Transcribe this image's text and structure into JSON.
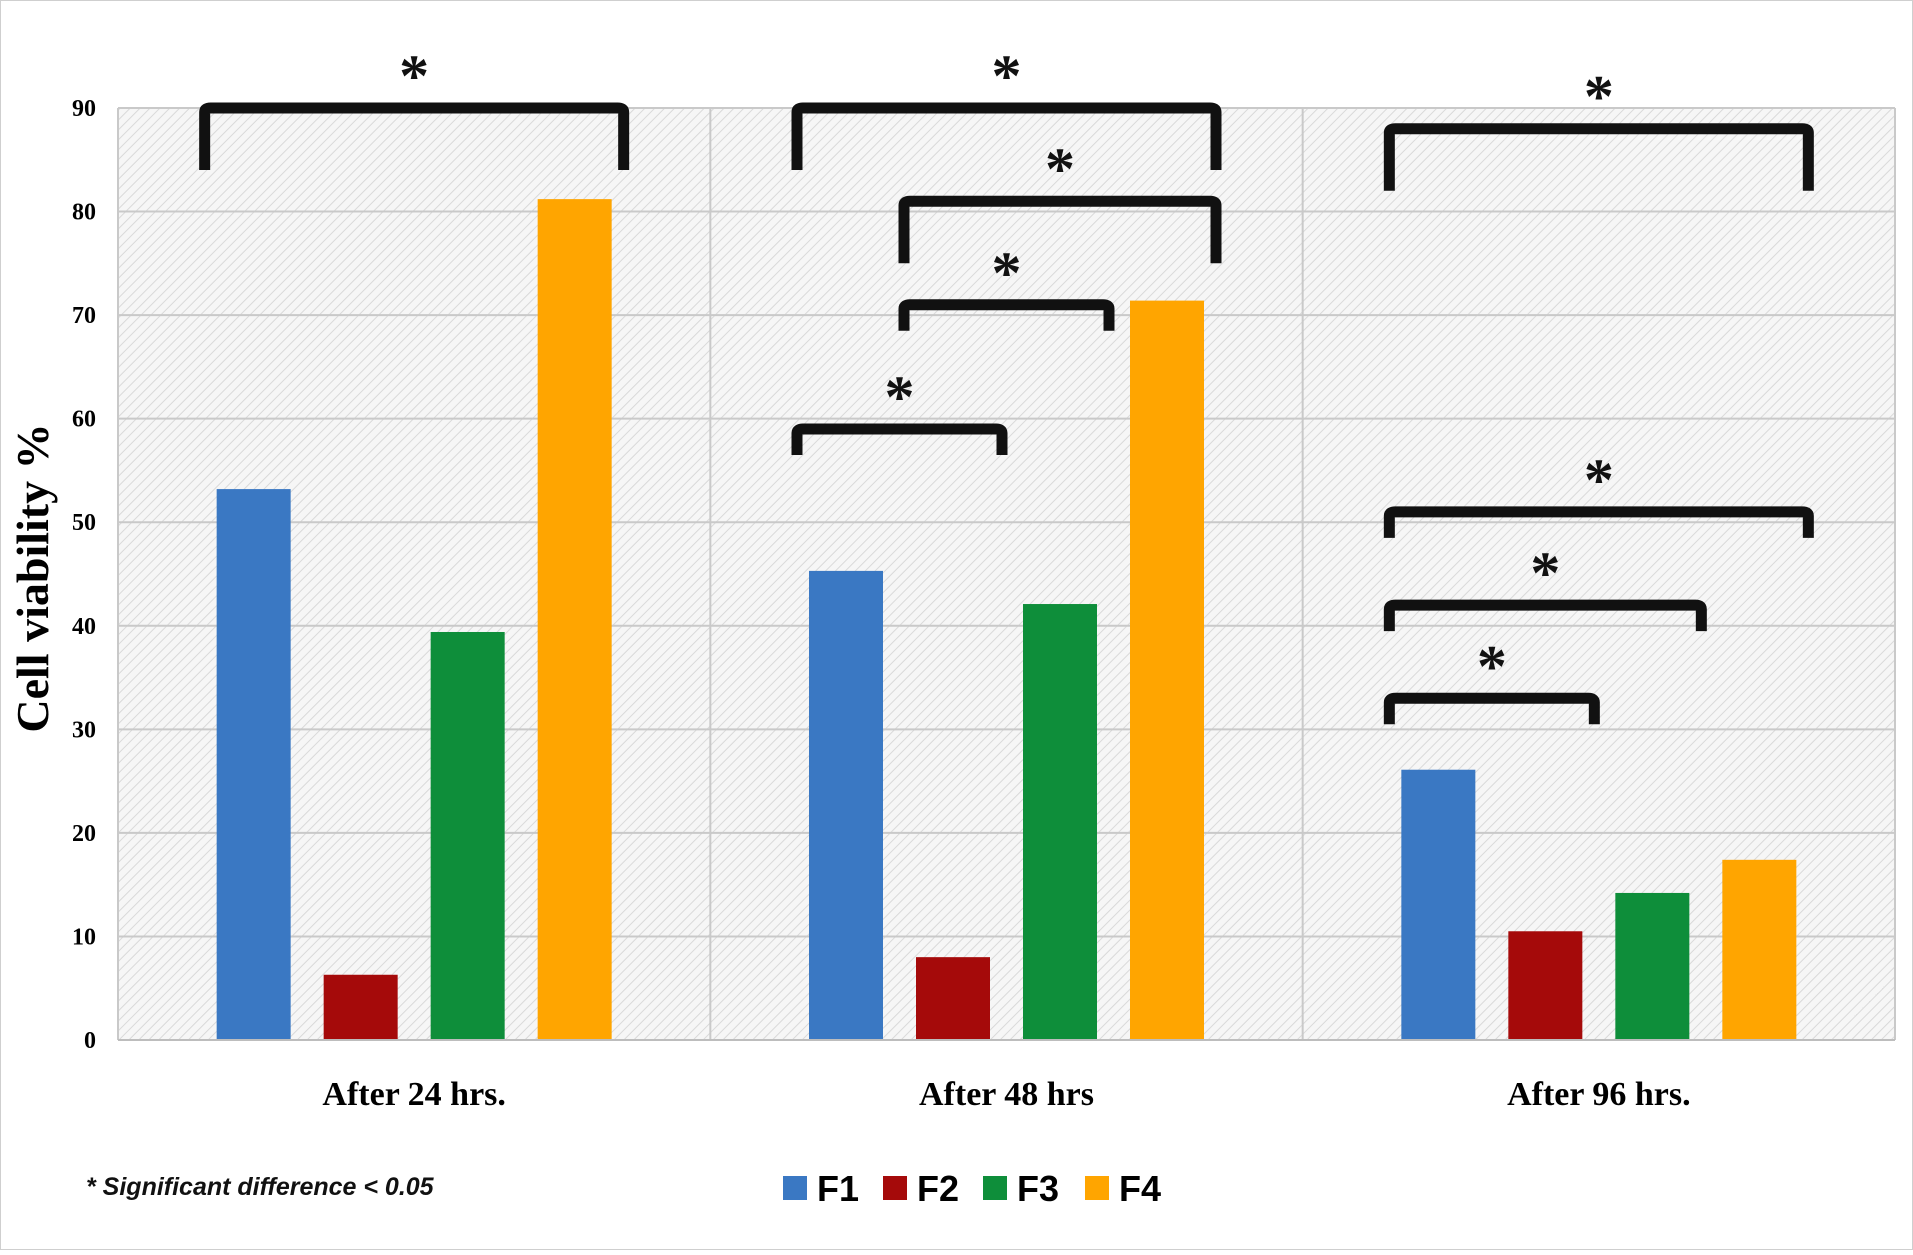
{
  "chart_data": {
    "type": "bar",
    "categories": [
      "After 24 hrs.",
      "After 48 hrs",
      "After 96 hrs."
    ],
    "series": [
      {
        "name": "F1",
        "color": "#3a78c3",
        "values": [
          53.2,
          45.3,
          26.1
        ]
      },
      {
        "name": "F2",
        "color": "#a50a0a",
        "values": [
          6.3,
          8.0,
          10.5
        ]
      },
      {
        "name": "F3",
        "color": "#0e8e3a",
        "values": [
          39.4,
          42.1,
          14.2
        ]
      },
      {
        "name": "F4",
        "color": "#ffa500",
        "values": [
          81.2,
          71.4,
          17.4
        ]
      }
    ],
    "ylabel": "Cell viability %",
    "xlabel": "",
    "ylim": [
      0,
      90
    ],
    "yticks": [
      0,
      10,
      20,
      30,
      40,
      50,
      60,
      70,
      80,
      90
    ],
    "grid": true,
    "legend_position": "bottom-center",
    "significance_marker": "*",
    "significance_brackets": [
      {
        "category": 0,
        "from_series": 0,
        "to_series": 3,
        "level": 90
      },
      {
        "category": 1,
        "from_series": 0,
        "to_series": 3,
        "level": 90
      },
      {
        "category": 1,
        "from_series": 1,
        "to_series": 3,
        "level": 81
      },
      {
        "category": 1,
        "from_series": 1,
        "to_series": 2,
        "level": 71
      },
      {
        "category": 1,
        "from_series": 0,
        "to_series": 1,
        "level": 59
      },
      {
        "category": 2,
        "from_series": 0,
        "to_series": 3,
        "level": 88
      },
      {
        "category": 2,
        "from_series": 0,
        "to_series": 3,
        "level": 51
      },
      {
        "category": 2,
        "from_series": 0,
        "to_series": 2,
        "level": 42
      },
      {
        "category": 2,
        "from_series": 0,
        "to_series": 1,
        "level": 33
      }
    ],
    "note": "* Significant difference  < 0.05"
  }
}
